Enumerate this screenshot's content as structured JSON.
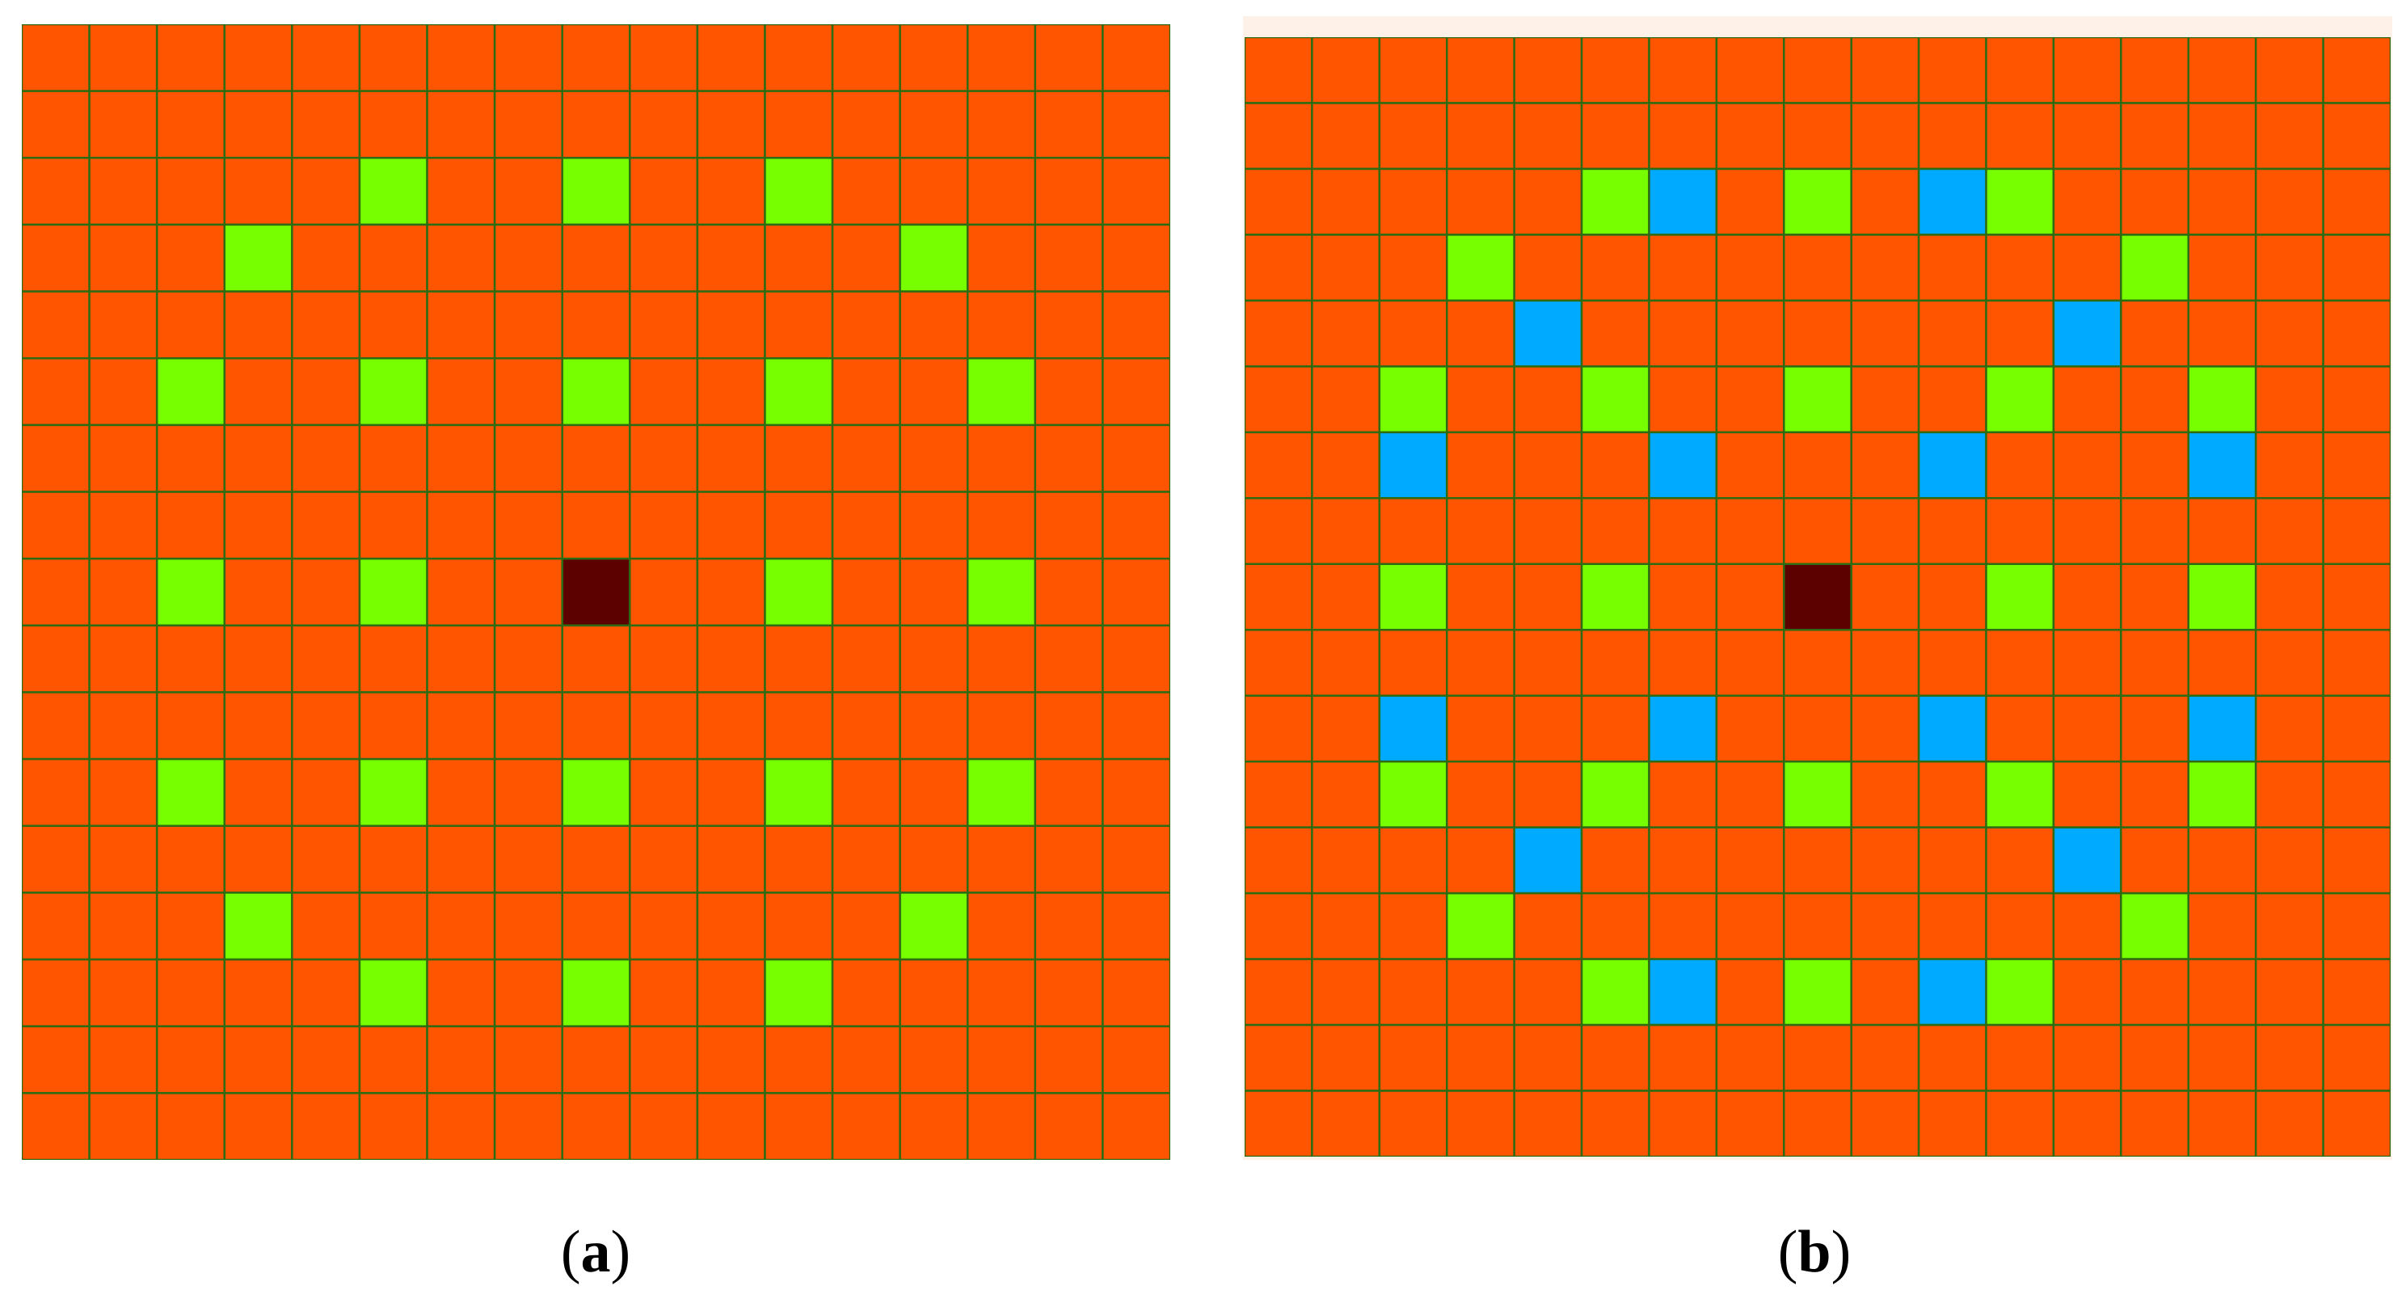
{
  "colors": {
    "background_cell": "#ff5500",
    "grid_line": "#2e6b12",
    "center": "#5c0000",
    "green": "#77ff00",
    "blue": "#00aaff"
  },
  "panels": [
    {
      "id": "a",
      "caption": {
        "open": "(",
        "letter": "a",
        "close": ")"
      },
      "rows": 17,
      "cols": 17,
      "center": [
        8,
        8
      ],
      "green_cells": [
        [
          2,
          5
        ],
        [
          2,
          8
        ],
        [
          2,
          11
        ],
        [
          3,
          3
        ],
        [
          3,
          13
        ],
        [
          5,
          2
        ],
        [
          5,
          5
        ],
        [
          5,
          8
        ],
        [
          5,
          11
        ],
        [
          5,
          14
        ],
        [
          8,
          2
        ],
        [
          8,
          5
        ],
        [
          8,
          11
        ],
        [
          8,
          14
        ],
        [
          11,
          2
        ],
        [
          11,
          5
        ],
        [
          11,
          8
        ],
        [
          11,
          11
        ],
        [
          11,
          14
        ],
        [
          13,
          3
        ],
        [
          13,
          13
        ],
        [
          14,
          5
        ],
        [
          14,
          8
        ],
        [
          14,
          11
        ]
      ],
      "blue_cells": []
    },
    {
      "id": "b",
      "caption": {
        "open": "(",
        "letter": "b",
        "close": ")"
      },
      "rows": 17,
      "cols": 17,
      "center": [
        8,
        8
      ],
      "green_cells": [
        [
          2,
          5
        ],
        [
          2,
          8
        ],
        [
          2,
          11
        ],
        [
          3,
          3
        ],
        [
          3,
          13
        ],
        [
          5,
          2
        ],
        [
          5,
          5
        ],
        [
          5,
          8
        ],
        [
          5,
          11
        ],
        [
          5,
          14
        ],
        [
          8,
          2
        ],
        [
          8,
          5
        ],
        [
          8,
          11
        ],
        [
          8,
          14
        ],
        [
          11,
          2
        ],
        [
          11,
          5
        ],
        [
          11,
          8
        ],
        [
          11,
          11
        ],
        [
          11,
          14
        ],
        [
          13,
          3
        ],
        [
          13,
          13
        ],
        [
          14,
          5
        ],
        [
          14,
          8
        ],
        [
          14,
          11
        ]
      ],
      "blue_cells": [
        [
          2,
          6
        ],
        [
          2,
          10
        ],
        [
          4,
          4
        ],
        [
          4,
          12
        ],
        [
          6,
          2
        ],
        [
          6,
          6
        ],
        [
          6,
          10
        ],
        [
          6,
          14
        ],
        [
          10,
          2
        ],
        [
          10,
          6
        ],
        [
          10,
          10
        ],
        [
          10,
          14
        ],
        [
          12,
          4
        ],
        [
          12,
          12
        ],
        [
          14,
          6
        ],
        [
          14,
          10
        ]
      ]
    }
  ]
}
